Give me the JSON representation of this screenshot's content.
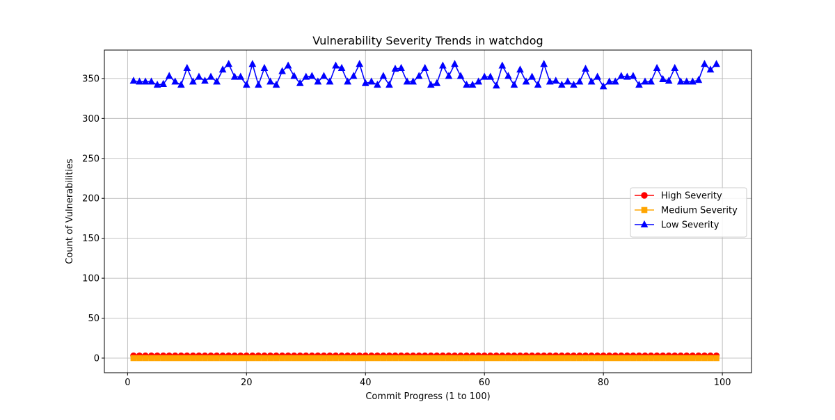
{
  "chart_data": {
    "type": "line",
    "title": "Vulnerability Severity Trends in watchdog",
    "xlabel": "Commit Progress (1 to 100)",
    "ylabel": "Count of Vulnerabilities",
    "xlim": [
      -3.9,
      104.9
    ],
    "ylim": [
      -18.3,
      385.6
    ],
    "xticks": [
      0,
      20,
      40,
      60,
      80,
      100
    ],
    "yticks": [
      0,
      50,
      100,
      150,
      200,
      250,
      300,
      350
    ],
    "grid": true,
    "legend_position": "center-right",
    "x": [
      1,
      2,
      3,
      4,
      5,
      6,
      7,
      8,
      9,
      10,
      11,
      12,
      13,
      14,
      15,
      16,
      17,
      18,
      19,
      20,
      21,
      22,
      23,
      24,
      25,
      26,
      27,
      28,
      29,
      30,
      31,
      32,
      33,
      34,
      35,
      36,
      37,
      38,
      39,
      40,
      41,
      42,
      43,
      44,
      45,
      46,
      47,
      48,
      49,
      50,
      51,
      52,
      53,
      54,
      55,
      56,
      57,
      58,
      59,
      60,
      61,
      62,
      63,
      64,
      65,
      66,
      67,
      68,
      69,
      70,
      71,
      72,
      73,
      74,
      75,
      76,
      77,
      78,
      79,
      80,
      81,
      82,
      83,
      84,
      85,
      86,
      87,
      88,
      89,
      90,
      91,
      92,
      93,
      94,
      95,
      96,
      97,
      98,
      99
    ],
    "series": [
      {
        "name": "High Severity",
        "color": "#ff0000",
        "marker": "circle",
        "values": [
          3,
          3,
          3,
          3,
          3,
          3,
          3,
          3,
          3,
          3,
          3,
          3,
          3,
          3,
          3,
          3,
          3,
          3,
          3,
          3,
          3,
          3,
          3,
          3,
          3,
          3,
          3,
          3,
          3,
          3,
          3,
          3,
          3,
          3,
          3,
          3,
          3,
          3,
          3,
          3,
          3,
          3,
          3,
          3,
          3,
          3,
          3,
          3,
          3,
          3,
          3,
          3,
          3,
          3,
          3,
          3,
          3,
          3,
          3,
          3,
          3,
          3,
          3,
          3,
          3,
          3,
          3,
          3,
          3,
          3,
          3,
          3,
          3,
          3,
          3,
          3,
          3,
          3,
          3,
          3,
          3,
          3,
          3,
          3,
          3,
          3,
          3,
          3,
          3,
          3,
          3,
          3,
          3,
          3,
          3,
          3,
          3,
          3,
          3
        ]
      },
      {
        "name": "Medium Severity",
        "color": "#ffa500",
        "marker": "square",
        "values": [
          0,
          0,
          0,
          0,
          0,
          0,
          0,
          0,
          0,
          0,
          0,
          0,
          0,
          0,
          0,
          0,
          0,
          0,
          0,
          0,
          0,
          0,
          0,
          0,
          0,
          0,
          0,
          0,
          0,
          0,
          0,
          0,
          0,
          0,
          0,
          0,
          0,
          0,
          0,
          0,
          0,
          0,
          0,
          0,
          0,
          0,
          0,
          0,
          0,
          0,
          0,
          0,
          0,
          0,
          0,
          0,
          0,
          0,
          0,
          0,
          0,
          0,
          0,
          0,
          0,
          0,
          0,
          0,
          0,
          0,
          0,
          0,
          0,
          0,
          0,
          0,
          0,
          0,
          0,
          0,
          0,
          0,
          0,
          0,
          0,
          0,
          0,
          0,
          0,
          0,
          0,
          0,
          0,
          0,
          0,
          0,
          0,
          0,
          0
        ]
      },
      {
        "name": "Low Severity",
        "color": "#0000ff",
        "marker": "triangle",
        "values": [
          347,
          346,
          346,
          346,
          342,
          343,
          353,
          346,
          342,
          363,
          346,
          352,
          347,
          352,
          346,
          361,
          368,
          352,
          352,
          342,
          368,
          342,
          363,
          346,
          342,
          359,
          366,
          353,
          344,
          352,
          353,
          346,
          353,
          346,
          366,
          363,
          346,
          353,
          368,
          344,
          346,
          342,
          353,
          342,
          362,
          363,
          346,
          346,
          353,
          363,
          342,
          344,
          366,
          353,
          368,
          353,
          342,
          342,
          346,
          352,
          352,
          341,
          366,
          353,
          342,
          361,
          346,
          352,
          342,
          368,
          346,
          347,
          342,
          346,
          342,
          346,
          362,
          346,
          352,
          340,
          346,
          346,
          353,
          352,
          353,
          342,
          346,
          346,
          363,
          349,
          347,
          363,
          346,
          346,
          346,
          348,
          368,
          361,
          368
        ]
      }
    ]
  }
}
